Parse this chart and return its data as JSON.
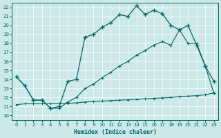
{
  "xlabel": "Humidex (Indice chaleur)",
  "bg_color": "#cce8e8",
  "line_color": "#006666",
  "xlim": [
    -0.5,
    23.5
  ],
  "ylim": [
    9.5,
    22.5
  ],
  "xticks": [
    0,
    1,
    2,
    3,
    4,
    5,
    6,
    7,
    8,
    9,
    10,
    11,
    12,
    13,
    14,
    15,
    16,
    17,
    18,
    19,
    20,
    21,
    22,
    23
  ],
  "yticks": [
    10,
    11,
    12,
    13,
    14,
    15,
    16,
    17,
    18,
    19,
    20,
    21,
    22
  ],
  "curve1_x": [
    0,
    1,
    2,
    3,
    4,
    5,
    6,
    7,
    8,
    9,
    10,
    11,
    12,
    13,
    14,
    15,
    16,
    17,
    18,
    19,
    20,
    21,
    22,
    23
  ],
  "curve1_y": [
    14.3,
    13.3,
    11.7,
    11.7,
    10.8,
    11.0,
    13.8,
    14.0,
    18.7,
    19.0,
    19.8,
    20.3,
    21.2,
    21.0,
    22.2,
    21.2,
    21.7,
    21.3,
    20.0,
    19.5,
    20.0,
    17.8,
    15.5,
    13.8
  ],
  "curve2_x": [
    0,
    1,
    2,
    3,
    4,
    5,
    6,
    7,
    8,
    9,
    10,
    11,
    12,
    13,
    14,
    15,
    16,
    17,
    18,
    19,
    20,
    21,
    22,
    23
  ],
  "curve2_y": [
    14.3,
    13.3,
    11.7,
    11.7,
    10.8,
    10.8,
    11.5,
    12.0,
    13.0,
    13.5,
    14.2,
    14.8,
    15.5,
    16.0,
    16.7,
    17.2,
    17.8,
    18.2,
    17.8,
    19.5,
    18.0,
    18.0,
    15.5,
    12.5
  ],
  "curve3_x": [
    0,
    1,
    2,
    3,
    4,
    5,
    6,
    7,
    8,
    9,
    10,
    11,
    12,
    13,
    14,
    15,
    16,
    17,
    18,
    19,
    20,
    21,
    22,
    23
  ],
  "curve3_y": [
    11.2,
    11.3,
    11.3,
    11.3,
    11.3,
    11.3,
    11.35,
    11.4,
    11.5,
    11.55,
    11.6,
    11.65,
    11.7,
    11.75,
    11.8,
    11.85,
    11.9,
    11.95,
    12.0,
    12.1,
    12.15,
    12.2,
    12.3,
    12.5
  ]
}
